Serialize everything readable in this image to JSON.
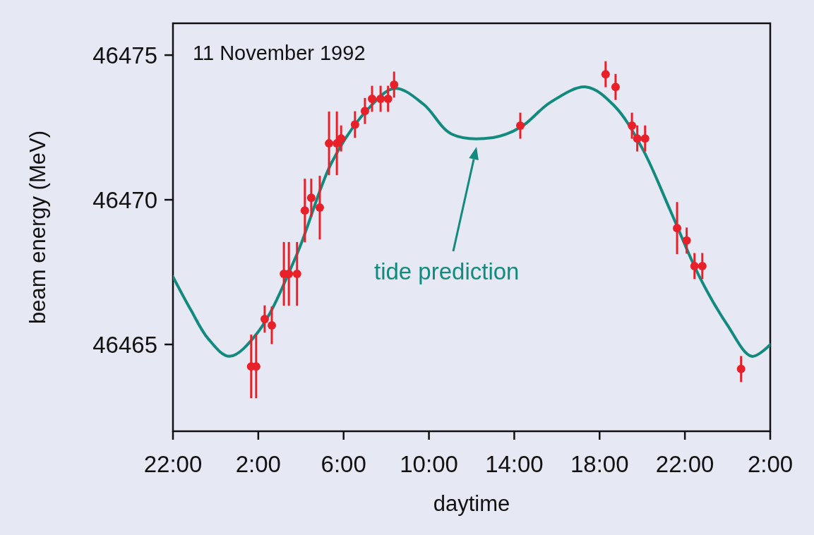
{
  "chart_data": {
    "type": "scatter",
    "xlabel": "daytime",
    "ylabel": "beam energy (MeV)",
    "xlim": [
      "1992-11-10T22:00",
      "1992-11-12T02:00"
    ],
    "xticks": [
      {
        "value": "1992-11-10T22:00",
        "label": "22:00"
      },
      {
        "value": "1992-11-11T02:00",
        "label": "2:00"
      },
      {
        "value": "1992-11-11T06:00",
        "label": "6:00"
      },
      {
        "value": "1992-11-11T10:00",
        "label": "10:00"
      },
      {
        "value": "1992-11-11T14:00",
        "label": "14:00"
      },
      {
        "value": "1992-11-11T18:00",
        "label": "18:00"
      },
      {
        "value": "1992-11-11T22:00",
        "label": "22:00"
      },
      {
        "value": "1992-11-12T02:00",
        "label": "2:00"
      }
    ],
    "ylim": [
      46462,
      46476.1
    ],
    "yticks": [
      46465,
      46470,
      46475
    ],
    "grid": false,
    "annotations": [
      "11 November 1992",
      "tide prediction"
    ],
    "series": [
      {
        "type": "line",
        "color": "#138a7e",
        "marker": "none",
        "line_style": "solid",
        "x": [
          "1992-11-10T22:00",
          "1992-11-10T22:50",
          "1992-11-10T23:39",
          "1992-11-11T00:39",
          "1992-11-11T02:00",
          "1992-11-11T03:48",
          "1992-11-11T05:27",
          "1992-11-11T07:06",
          "1992-11-11T08:24",
          "1992-11-11T09:45",
          "1992-11-11T11:04",
          "1992-11-11T13:00",
          "1992-11-11T14:17",
          "1992-11-11T15:42",
          "1992-11-11T17:22",
          "1992-11-11T18:42",
          "1992-11-11T20:00",
          "1992-11-11T21:20",
          "1992-11-11T22:39",
          "1992-11-11T23:59",
          "1992-11-12T01:08",
          "1992-11-12T02:00"
        ],
        "values": [
          46467.34,
          46466.2,
          46465.2,
          46464.59,
          46465.44,
          46468.1,
          46471.3,
          46473.1,
          46473.85,
          46473.3,
          46472.27,
          46472.15,
          46472.5,
          46473.37,
          46473.9,
          46473.24,
          46471.78,
          46469.6,
          46467.39,
          46465.68,
          46464.59,
          46465
        ]
      },
      {
        "color": "#e8202a",
        "marker": "circle",
        "x": [
          "1992-11-11T01:40",
          "1992-11-11T01:54",
          "1992-11-11T02:18",
          "1992-11-11T02:38",
          "1992-11-11T03:12",
          "1992-11-11T03:26",
          "1992-11-11T03:49",
          "1992-11-11T04:11",
          "1992-11-11T04:29",
          "1992-11-11T04:53",
          "1992-11-11T05:19",
          "1992-11-11T05:41",
          "1992-11-11T05:53",
          "1992-11-11T06:32",
          "1992-11-11T07:00",
          "1992-11-11T07:20",
          "1992-11-11T07:44",
          "1992-11-11T08:05",
          "1992-11-11T08:22",
          "1992-11-11T14:17",
          "1992-11-11T18:17",
          "1992-11-11T18:45",
          "1992-11-11T19:31",
          "1992-11-11T19:46",
          "1992-11-11T20:08",
          "1992-11-11T21:38",
          "1992-11-11T22:05",
          "1992-11-11T22:27",
          "1992-11-11T22:49",
          "1992-11-12T00:38"
        ],
        "values": [
          46464.24,
          46464.24,
          46465.88,
          46465.66,
          46467.44,
          46467.44,
          46467.44,
          46469.63,
          46470.07,
          46469.73,
          46471.95,
          46471.95,
          46472.12,
          46472.6,
          46473.07,
          46473.49,
          46473.49,
          46473.49,
          46473.98,
          46472.56,
          46474.34,
          46473.9,
          46472.56,
          46472.12,
          46472.12,
          46469.02,
          46468.59,
          46467.71,
          46467.71,
          46464.15
        ],
        "errors": [
          1.1,
          1.1,
          0.47,
          0.65,
          1.1,
          1.1,
          1.1,
          1.1,
          0.66,
          1.1,
          1.1,
          1.1,
          0.45,
          0.46,
          0.45,
          0.45,
          0.45,
          0.45,
          0.45,
          0.45,
          0.45,
          0.45,
          0.45,
          0.45,
          0.45,
          0.9,
          0.45,
          0.45,
          0.45,
          0.45
        ]
      }
    ]
  }
}
